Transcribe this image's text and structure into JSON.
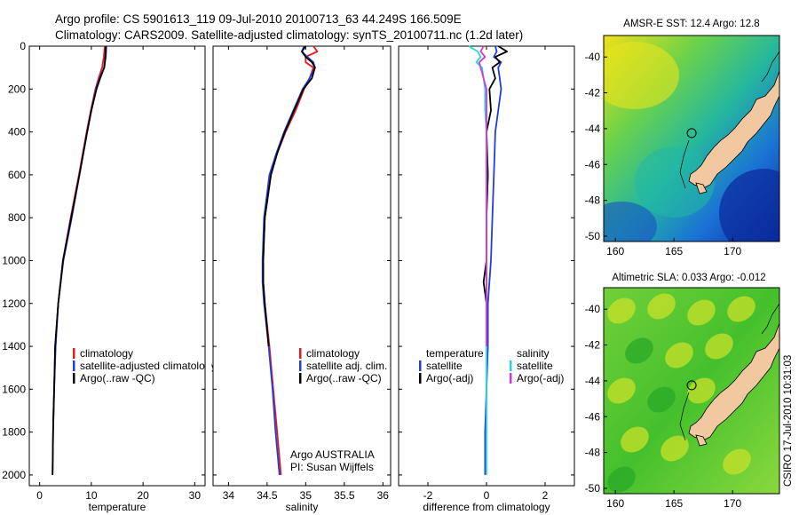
{
  "header": {
    "title_line1": "Argo profile: CS 5901613_119 09-Jul-2010 20100713_63 44.249S 166.509E",
    "title_line2": "Climatology: CARS2009. Satellite-adjusted climatology: synTS_20100711.nc (1.2d later)"
  },
  "side_label": "CSIRO 17-Jul-2010 10:31:03",
  "credit": {
    "line1": "Argo AUSTRALIA",
    "line2": "PI: Susan Wijffels"
  },
  "colors": {
    "climatology": "#e8181c",
    "satellite": "#1f3ee0",
    "argo": "#000000",
    "satellite_sal": "#22d8d8",
    "argo_sal": "#d636d6",
    "land": "#f2c8a0"
  },
  "chart_data": [
    {
      "type": "line",
      "id": "temperature",
      "xlabel": "temperature",
      "ylabel": "",
      "xlim": [
        -2,
        32
      ],
      "ylim": [
        2050,
        0
      ],
      "y_inverted": true,
      "xticks": [
        0,
        10,
        20,
        30
      ],
      "yticks": [
        0,
        200,
        400,
        600,
        800,
        1000,
        1200,
        1400,
        1600,
        1800,
        2000
      ],
      "legend": [
        "climatology",
        "satellite-adjusted climatology",
        "Argo(..raw -QC)"
      ],
      "legend_placement": "lower-right",
      "series": [
        {
          "name": "climatology",
          "color_key": "climatology",
          "depth": [
            0,
            50,
            100,
            150,
            200,
            300,
            400,
            600,
            800,
            1000,
            1200,
            1400,
            1600,
            1750
          ],
          "values": [
            12.6,
            12.4,
            12.1,
            11.4,
            10.8,
            9.9,
            9.1,
            7.6,
            6.0,
            4.5,
            3.6,
            3.0,
            2.8,
            2.6
          ]
        },
        {
          "name": "satellite-adjusted climatology",
          "color_key": "satellite",
          "depth": [
            0,
            50,
            100,
            150,
            200,
            300,
            400,
            600,
            800,
            1000,
            1200,
            1400,
            1600,
            1800,
            2000
          ],
          "values": [
            12.9,
            12.8,
            12.5,
            11.6,
            10.9,
            10.0,
            9.2,
            7.7,
            6.2,
            4.6,
            3.6,
            3.1,
            2.8,
            2.6,
            2.5
          ]
        },
        {
          "name": "Argo(..raw -QC)",
          "color_key": "argo",
          "depth": [
            0,
            50,
            100,
            150,
            200,
            300,
            400,
            600,
            800,
            1000,
            1200,
            1400,
            1600,
            1800,
            2000
          ],
          "values": [
            12.8,
            12.7,
            12.5,
            11.7,
            11.0,
            10.0,
            9.2,
            7.7,
            6.1,
            4.5,
            3.6,
            3.0,
            2.8,
            2.6,
            2.5
          ]
        }
      ]
    },
    {
      "type": "line",
      "id": "salinity",
      "xlabel": "salinity",
      "ylabel": "",
      "xlim": [
        33.8,
        36.1
      ],
      "ylim": [
        2050,
        0
      ],
      "y_inverted": true,
      "xticks": [
        34,
        34.5,
        35,
        35.5,
        36
      ],
      "yticks": [
        0,
        200,
        400,
        600,
        800,
        1000,
        1200,
        1400,
        1600,
        1800,
        2000
      ],
      "legend": [
        "climatology",
        "satellite adj. clim.",
        "Argo(..raw -QC)"
      ],
      "legend_placement": "lower-right",
      "series": [
        {
          "name": "climatology",
          "color_key": "climatology",
          "depth": [
            0,
            25,
            50,
            75,
            100,
            150,
            200,
            300,
            400,
            500,
            600,
            800,
            1000,
            1100,
            1200,
            1400,
            1600,
            1800,
            2000
          ],
          "values": [
            35.1,
            35.15,
            35.0,
            35.0,
            35.1,
            35.05,
            34.98,
            34.87,
            34.74,
            34.63,
            34.55,
            34.47,
            34.45,
            34.45,
            34.47,
            34.53,
            34.58,
            34.63,
            34.68
          ]
        },
        {
          "name": "satellite adj. clim.",
          "color_key": "satellite",
          "depth": [
            0,
            25,
            50,
            75,
            100,
            150,
            200,
            300,
            400,
            500,
            600,
            800,
            1000,
            1100,
            1200,
            1400,
            1600,
            1800,
            2000
          ],
          "values": [
            34.98,
            34.95,
            35.02,
            35.1,
            35.12,
            35.05,
            34.96,
            34.84,
            34.72,
            34.62,
            34.53,
            34.46,
            34.44,
            34.44,
            34.46,
            34.52,
            34.57,
            34.61,
            34.66
          ]
        },
        {
          "name": "Argo(..raw -QC)",
          "color_key": "argo",
          "depth": [
            0,
            25,
            50,
            75,
            100,
            150,
            200,
            300,
            400,
            500,
            600,
            800,
            1000,
            1100,
            1200,
            1400
          ],
          "values": [
            35.0,
            34.95,
            35.0,
            35.08,
            35.12,
            35.08,
            34.97,
            34.85,
            34.73,
            34.63,
            34.55,
            34.47,
            34.45,
            34.45,
            34.47,
            34.52
          ]
        }
      ]
    },
    {
      "type": "line",
      "id": "difference",
      "xlabel": "difference from climatology",
      "ylabel": "",
      "xlim": [
        -3,
        3
      ],
      "ylim": [
        2050,
        0
      ],
      "y_inverted": true,
      "xticks": [
        -2,
        0,
        2
      ],
      "yticks": [
        0,
        200,
        400,
        600,
        800,
        1000,
        1200,
        1400,
        1600,
        1800,
        2000
      ],
      "legend_groups": [
        {
          "heading": "temperature",
          "items": [
            "satellite",
            "Argo(-adj)"
          ]
        },
        {
          "heading": "salinity",
          "items": [
            "satellite",
            "Argo(-adj)"
          ]
        }
      ],
      "legend_placement": "lower",
      "series": [
        {
          "name": "satellite",
          "group": "temperature",
          "color_key": "satellite",
          "depth": [
            0,
            25,
            50,
            75,
            100,
            150,
            200,
            300,
            400,
            600,
            800,
            1000,
            1100,
            1200,
            1400,
            1600,
            1800,
            2000
          ],
          "values": [
            0.3,
            0.35,
            0.25,
            0.5,
            0.4,
            0.45,
            0.5,
            0.4,
            0.3,
            0.25,
            0.2,
            0.15,
            0.1,
            0.05,
            0.05,
            0.0,
            -0.05,
            -0.05
          ]
        },
        {
          "name": "Argo(-adj)",
          "group": "temperature",
          "color_key": "argo",
          "depth": [
            0,
            25,
            50,
            75,
            100,
            150,
            200,
            300,
            400,
            600,
            800,
            1000,
            1100,
            1200,
            1400
          ],
          "values": [
            0.4,
            0.7,
            0.3,
            0.45,
            0.2,
            0.3,
            0.1,
            0.15,
            0.0,
            0.05,
            0.0,
            0.0,
            -0.1,
            0.0,
            0.0
          ]
        },
        {
          "name": "satellite",
          "group": "salinity",
          "color_key": "satellite_sal",
          "depth": [
            0,
            25,
            50,
            75,
            100,
            150,
            200,
            300,
            400,
            600,
            800,
            1000,
            1200,
            1400,
            1600,
            1800,
            2000
          ],
          "values": [
            -0.6,
            -0.3,
            -0.2,
            -0.35,
            -0.15,
            -0.1,
            -0.05,
            -0.05,
            0.0,
            0.0,
            0.0,
            0.0,
            0.0,
            0.0,
            0.0,
            0.0,
            0.0
          ]
        },
        {
          "name": "Argo(-adj)",
          "group": "salinity",
          "color_key": "argo_sal",
          "depth": [
            0,
            25,
            50,
            75,
            100,
            150,
            200,
            300,
            400,
            600,
            800,
            1000,
            1200,
            1400
          ],
          "values": [
            -0.1,
            -0.2,
            -0.05,
            -0.25,
            -0.2,
            -0.1,
            0.0,
            0.0,
            0.0,
            0.0,
            0.0,
            0.0,
            0.0,
            0.0
          ]
        }
      ]
    },
    {
      "type": "heatmap",
      "id": "sst-map",
      "title": "AMSR-E SST: 12.4 Argo: 12.8",
      "xlim": [
        159,
        174
      ],
      "ylim": [
        -50.3,
        -38.8
      ],
      "xticks": [
        160,
        165,
        170
      ],
      "yticks": [
        -40,
        -42,
        -44,
        -46,
        -48,
        -50
      ],
      "float_position": {
        "lon": 166.509,
        "lat": -44.249
      }
    },
    {
      "type": "heatmap",
      "id": "sla-map",
      "title": "Altimetric SLA: 0.033 Argo: -0.012",
      "xlim": [
        159,
        174
      ],
      "ylim": [
        -50.3,
        -38.8
      ],
      "xticks": [
        160,
        165,
        170
      ],
      "yticks": [
        -40,
        -42,
        -44,
        -46,
        -48,
        -50
      ],
      "float_position": {
        "lon": 166.509,
        "lat": -44.249
      }
    }
  ]
}
